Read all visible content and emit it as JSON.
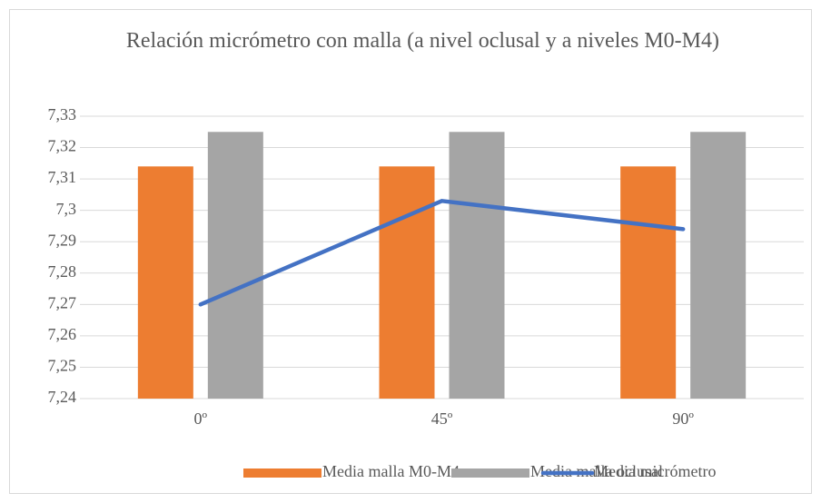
{
  "chart_data": {
    "type": "bar-line",
    "title": "Relación micrómetro con malla (a nivel oclusal y a niveles M0-M4)",
    "categories": [
      "0º",
      "45º",
      "90º"
    ],
    "series": [
      {
        "name": "Media malla M0-M4",
        "type": "bar",
        "color": "#ed7d31",
        "values": [
          7.314,
          7.314,
          7.314
        ]
      },
      {
        "name": "Media malla oclusal",
        "type": "bar",
        "color": "#a5a5a5",
        "values": [
          7.325,
          7.325,
          7.325
        ]
      },
      {
        "name": "Media micrómetro",
        "type": "line",
        "color": "#4472c4",
        "values": [
          7.27,
          7.303,
          7.294
        ]
      }
    ],
    "ylim": [
      7.24,
      7.33
    ],
    "yticks": [
      {
        "value": 7.24,
        "label": "7,24"
      },
      {
        "value": 7.25,
        "label": "7,25"
      },
      {
        "value": 7.26,
        "label": "7,26"
      },
      {
        "value": 7.27,
        "label": "7,27"
      },
      {
        "value": 7.28,
        "label": "7,28"
      },
      {
        "value": 7.29,
        "label": "7,29"
      },
      {
        "value": 7.3,
        "label": "7,3"
      },
      {
        "value": 7.31,
        "label": "7,31"
      },
      {
        "value": 7.32,
        "label": "7,32"
      },
      {
        "value": 7.33,
        "label": "7,33"
      }
    ],
    "grid": true,
    "legend": "bottom"
  }
}
